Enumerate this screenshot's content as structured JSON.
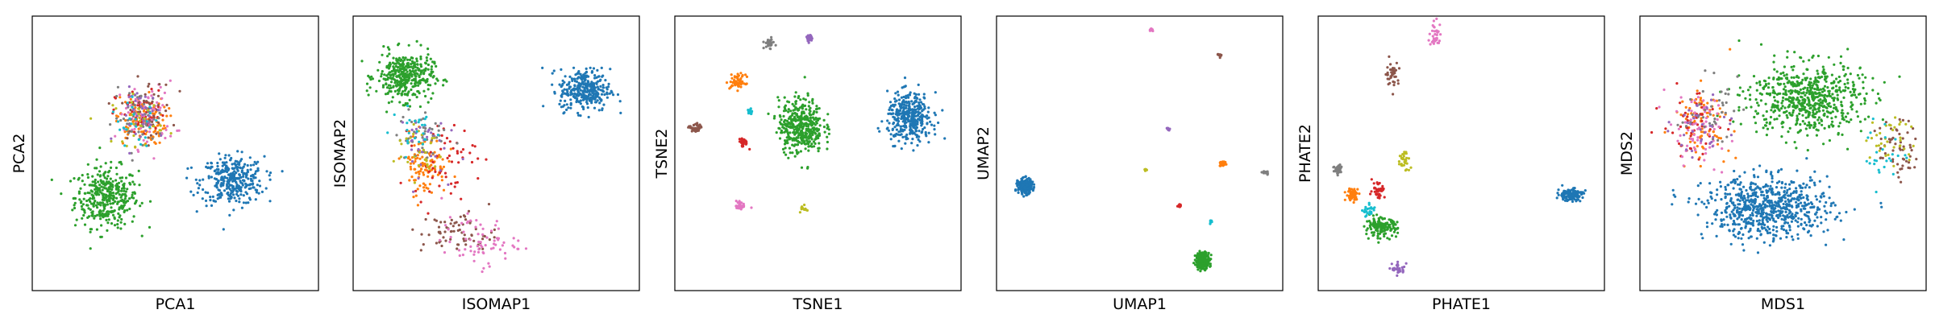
{
  "chart_data": [
    {
      "type": "scatter",
      "xlabel": "PCA1",
      "ylabel": "PCA2",
      "xlim": [
        0,
        100
      ],
      "ylim": [
        0,
        100
      ],
      "ticks": "none",
      "clusters": [
        {
          "color": "#2ca02c",
          "center": [
            26,
            34
          ],
          "spread": [
            10,
            10
          ],
          "count": 380
        },
        {
          "color": "#1f77b4",
          "center": [
            70,
            40
          ],
          "spread": [
            10,
            8
          ],
          "count": 340
        },
        {
          "color": "#ff7f0e",
          "center": [
            38,
            62
          ],
          "spread": [
            8,
            8
          ],
          "count": 110
        },
        {
          "color": "#d62728",
          "center": [
            38,
            64
          ],
          "spread": [
            8,
            8
          ],
          "count": 50
        },
        {
          "color": "#e377c2",
          "center": [
            40,
            64
          ],
          "spread": [
            9,
            11
          ],
          "count": 70
        },
        {
          "color": "#8c564b",
          "center": [
            40,
            66
          ],
          "spread": [
            8,
            10
          ],
          "count": 45
        },
        {
          "color": "#7f7f7f",
          "center": [
            37,
            63
          ],
          "spread": [
            8,
            9
          ],
          "count": 45
        },
        {
          "color": "#9467bd",
          "center": [
            40,
            64
          ],
          "spread": [
            8,
            9
          ],
          "count": 35
        },
        {
          "color": "#bcbd22",
          "center": [
            37,
            62
          ],
          "spread": [
            8,
            8
          ],
          "count": 30
        },
        {
          "color": "#17becf",
          "center": [
            36,
            60
          ],
          "spread": [
            8,
            8
          ],
          "count": 25
        }
      ]
    },
    {
      "type": "scatter",
      "xlabel": "ISOMAP1",
      "ylabel": "ISOMAP2",
      "xlim": [
        0,
        100
      ],
      "ylim": [
        0,
        100
      ],
      "ticks": "none",
      "clusters": [
        {
          "color": "#2ca02c",
          "center": [
            18,
            78
          ],
          "spread": [
            9,
            8
          ],
          "count": 380
        },
        {
          "color": "#1f77b4",
          "center": [
            81,
            73
          ],
          "spread": [
            8,
            7
          ],
          "count": 320
        },
        {
          "color": "#ff7f0e",
          "center": [
            25,
            46
          ],
          "spread": [
            7,
            10
          ],
          "count": 110
        },
        {
          "color": "#d62728",
          "center": [
            32,
            48
          ],
          "spread": [
            10,
            12
          ],
          "count": 55
        },
        {
          "color": "#8c564b",
          "center": [
            37,
            21
          ],
          "spread": [
            12,
            7
          ],
          "count": 70
        },
        {
          "color": "#e377c2",
          "center": [
            44,
            18
          ],
          "spread": [
            12,
            8
          ],
          "count": 70
        },
        {
          "color": "#7f7f7f",
          "center": [
            24,
            56
          ],
          "spread": [
            8,
            10
          ],
          "count": 45
        },
        {
          "color": "#9467bd",
          "center": [
            22,
            54
          ],
          "spread": [
            9,
            11
          ],
          "count": 35
        },
        {
          "color": "#bcbd22",
          "center": [
            23,
            52
          ],
          "spread": [
            8,
            10
          ],
          "count": 30
        },
        {
          "color": "#17becf",
          "center": [
            22,
            58
          ],
          "spread": [
            8,
            8
          ],
          "count": 25
        }
      ]
    },
    {
      "type": "scatter",
      "xlabel": "TSNE1",
      "ylabel": "TSNE2",
      "xlim": [
        0,
        100
      ],
      "ylim": [
        0,
        100
      ],
      "ticks": "none",
      "clusters": [
        {
          "color": "#2ca02c",
          "center": [
            44,
            60
          ],
          "spread": [
            7,
            9
          ],
          "count": 420
        },
        {
          "color": "#1f77b4",
          "center": [
            82,
            63
          ],
          "spread": [
            7,
            8
          ],
          "count": 380
        },
        {
          "color": "#ff7f0e",
          "center": [
            22,
            76
          ],
          "spread": [
            2.5,
            2.5
          ],
          "count": 60
        },
        {
          "color": "#7f7f7f",
          "center": [
            33,
            90
          ],
          "spread": [
            1.5,
            1.5
          ],
          "count": 35
        },
        {
          "color": "#9467bd",
          "center": [
            47,
            92
          ],
          "spread": [
            1.3,
            1.3
          ],
          "count": 30
        },
        {
          "color": "#8c564b",
          "center": [
            7,
            59
          ],
          "spread": [
            1.8,
            1.8
          ],
          "count": 35
        },
        {
          "color": "#d62728",
          "center": [
            24,
            54
          ],
          "spread": [
            1.5,
            1.5
          ],
          "count": 30
        },
        {
          "color": "#17becf",
          "center": [
            26,
            65
          ],
          "spread": [
            1,
            1
          ],
          "count": 15
        },
        {
          "color": "#e377c2",
          "center": [
            23,
            31
          ],
          "spread": [
            1.6,
            1.6
          ],
          "count": 30
        },
        {
          "color": "#bcbd22",
          "center": [
            45,
            30
          ],
          "spread": [
            1,
            1
          ],
          "count": 15
        }
      ]
    },
    {
      "type": "scatter",
      "xlabel": "UMAP1",
      "ylabel": "UMAP2",
      "xlim": [
        0,
        100
      ],
      "ylim": [
        0,
        100
      ],
      "ticks": "none",
      "clusters": [
        {
          "color": "#1f77b4",
          "center": [
            10,
            38
          ],
          "spread": [
            2.2,
            2.4
          ],
          "count": 260
        },
        {
          "color": "#2ca02c",
          "center": [
            72,
            11
          ],
          "spread": [
            2.2,
            2.6
          ],
          "count": 280
        },
        {
          "color": "#e377c2",
          "center": [
            54,
            95
          ],
          "spread": [
            0.6,
            0.6
          ],
          "count": 12
        },
        {
          "color": "#8c564b",
          "center": [
            78,
            86
          ],
          "spread": [
            0.7,
            0.7
          ],
          "count": 14
        },
        {
          "color": "#9467bd",
          "center": [
            60,
            59
          ],
          "spread": [
            0.5,
            0.5
          ],
          "count": 10
        },
        {
          "color": "#ff7f0e",
          "center": [
            79,
            46
          ],
          "spread": [
            1.1,
            0.9
          ],
          "count": 25
        },
        {
          "color": "#7f7f7f",
          "center": [
            94,
            43
          ],
          "spread": [
            1,
            0.7
          ],
          "count": 18
        },
        {
          "color": "#bcbd22",
          "center": [
            52,
            44
          ],
          "spread": [
            0.4,
            0.4
          ],
          "count": 8
        },
        {
          "color": "#d62728",
          "center": [
            64,
            31
          ],
          "spread": [
            0.6,
            0.6
          ],
          "count": 12
        },
        {
          "color": "#17becf",
          "center": [
            75,
            25
          ],
          "spread": [
            0.5,
            0.7
          ],
          "count": 10
        }
      ]
    },
    {
      "type": "scatter",
      "xlabel": "PHATE1",
      "ylabel": "PHATE2",
      "xlim": [
        0,
        100
      ],
      "ylim": [
        0,
        100
      ],
      "ticks": "none",
      "clusters": [
        {
          "color": "#1f77b4",
          "center": [
            88,
            35
          ],
          "spread": [
            4,
            2
          ],
          "count": 140
        },
        {
          "color": "#2ca02c",
          "center": [
            22,
            23
          ],
          "spread": [
            5,
            3
          ],
          "count": 150
        },
        {
          "color": "#ff7f0e",
          "center": [
            12,
            35
          ],
          "spread": [
            2,
            2
          ],
          "count": 60
        },
        {
          "color": "#7f7f7f",
          "center": [
            7,
            44
          ],
          "spread": [
            1.6,
            2
          ],
          "count": 40
        },
        {
          "color": "#d62728",
          "center": [
            21,
            37
          ],
          "spread": [
            2,
            3
          ],
          "count": 40
        },
        {
          "color": "#8c564b",
          "center": [
            26,
            79
          ],
          "spread": [
            2,
            4
          ],
          "count": 40
        },
        {
          "color": "#e377c2",
          "center": [
            41,
            93
          ],
          "spread": [
            2,
            4
          ],
          "count": 40
        },
        {
          "color": "#9467bd",
          "center": [
            28,
            8
          ],
          "spread": [
            2,
            2
          ],
          "count": 35
        },
        {
          "color": "#bcbd22",
          "center": [
            30,
            47
          ],
          "spread": [
            2,
            4
          ],
          "count": 35
        },
        {
          "color": "#17becf",
          "center": [
            18,
            29
          ],
          "spread": [
            2,
            2
          ],
          "count": 25
        }
      ]
    },
    {
      "type": "scatter",
      "xlabel": "MDS1",
      "ylabel": "MDS2",
      "xlim": [
        0,
        100
      ],
      "ylim": [
        0,
        100
      ],
      "ticks": "none",
      "clusters": [
        {
          "color": "#1f77b4",
          "center": [
            45,
            30
          ],
          "spread": [
            20,
            10
          ],
          "count": 700
        },
        {
          "color": "#2ca02c",
          "center": [
            58,
            70
          ],
          "spread": [
            18,
            12
          ],
          "count": 620
        },
        {
          "color": "#ff7f0e",
          "center": [
            22,
            62
          ],
          "spread": [
            9,
            11
          ],
          "count": 90
        },
        {
          "color": "#d62728",
          "center": [
            18,
            60
          ],
          "spread": [
            9,
            11
          ],
          "count": 50
        },
        {
          "color": "#e377c2",
          "center": [
            20,
            58
          ],
          "spread": [
            10,
            12
          ],
          "count": 70
        },
        {
          "color": "#8c564b",
          "center": [
            90,
            52
          ],
          "spread": [
            6,
            10
          ],
          "count": 55
        },
        {
          "color": "#7f7f7f",
          "center": [
            24,
            66
          ],
          "spread": [
            9,
            10
          ],
          "count": 40
        },
        {
          "color": "#9467bd",
          "center": [
            21,
            60
          ],
          "spread": [
            9,
            10
          ],
          "count": 35
        },
        {
          "color": "#bcbd22",
          "center": [
            88,
            55
          ],
          "spread": [
            7,
            10
          ],
          "count": 35
        },
        {
          "color": "#17becf",
          "center": [
            86,
            50
          ],
          "spread": [
            7,
            10
          ],
          "count": 25
        }
      ]
    }
  ]
}
